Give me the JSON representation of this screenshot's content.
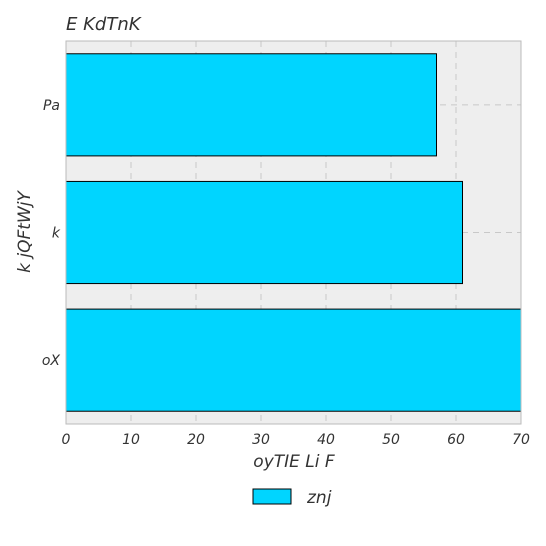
{
  "chart_data": {
    "type": "bar",
    "orientation": "horizontal",
    "title": "E  KdTnK",
    "xlabel": "oyTIE Li F",
    "ylabel": "k jQFtWjY",
    "categories": [
      "Pa",
      "k",
      "oX"
    ],
    "series": [
      {
        "name": "znj",
        "values": [
          57,
          61,
          70
        ],
        "color": "#00d5ff"
      }
    ],
    "xlim": [
      0,
      70
    ],
    "xticks": [
      0,
      10,
      20,
      30,
      40,
      50,
      60,
      70
    ],
    "grid": true,
    "legend_position": "bottom-center"
  },
  "colors": {
    "plot_background": "#eeeeee",
    "grid": "#c8c8c8",
    "bar_edge": "#000000"
  }
}
